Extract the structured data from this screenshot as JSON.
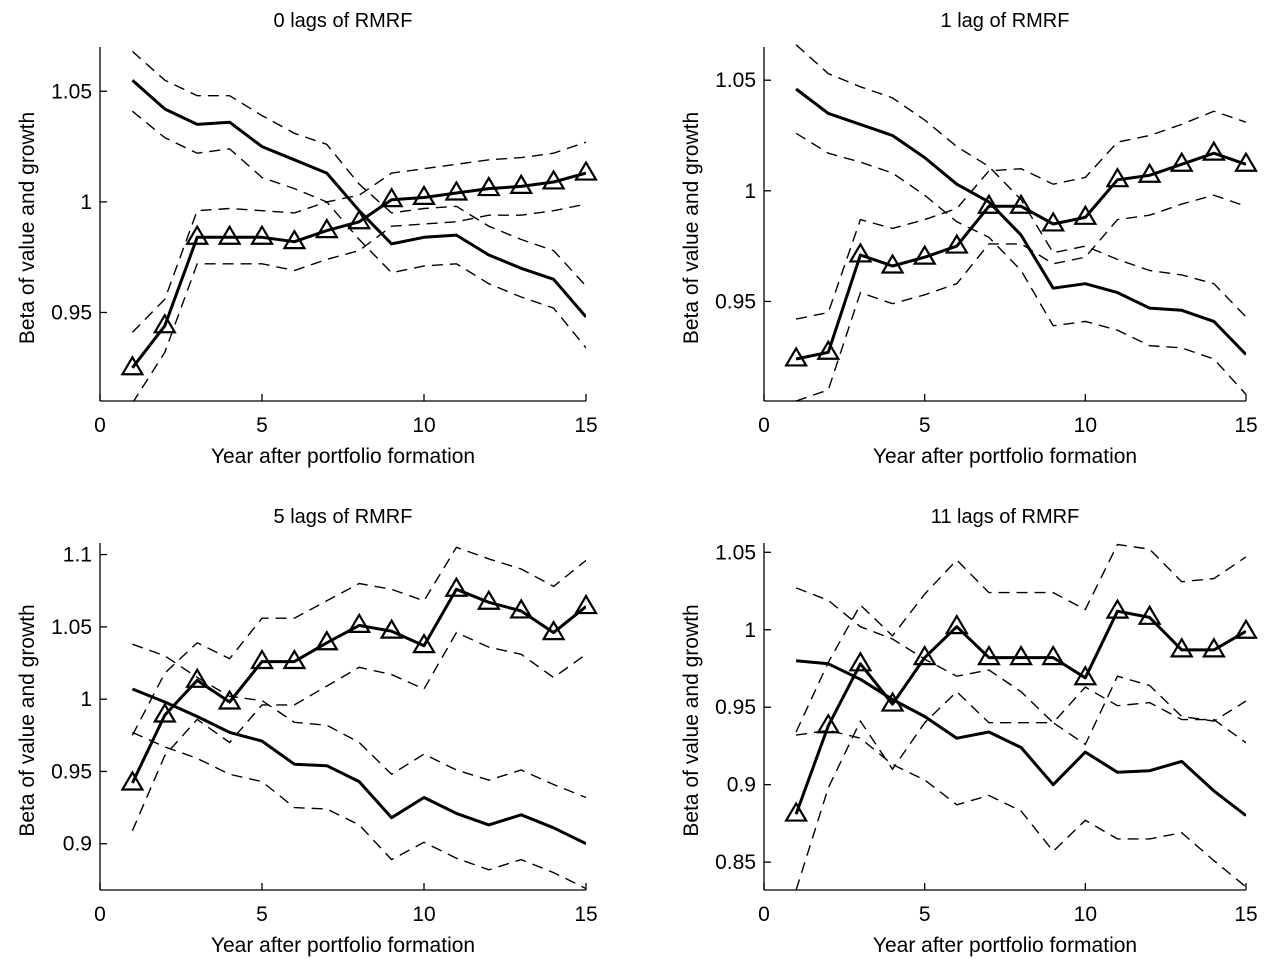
{
  "chart_data": [
    {
      "type": "line",
      "title": "0 lags of RMRF",
      "xlabel": "Year after portfolio formation",
      "ylabel": "Beta of value and growth",
      "xlim": [
        0,
        15
      ],
      "ylim": [
        0.91,
        1.07
      ],
      "xticks": [
        0,
        5,
        10,
        15
      ],
      "yticks": [
        0.95,
        1,
        1.05
      ],
      "yticklabels": [
        "0.95",
        "1",
        "1.05"
      ],
      "x": [
        1,
        2,
        3,
        4,
        5,
        6,
        7,
        8,
        9,
        10,
        11,
        12,
        13,
        14,
        15
      ],
      "series": [
        {
          "style": "solid",
          "values": [
            1.055,
            1.042,
            1.035,
            1.036,
            1.025,
            1.019,
            1.013,
            0.996,
            0.981,
            0.984,
            0.985,
            0.976,
            0.97,
            0.965,
            0.948
          ]
        },
        {
          "style": "dashed",
          "values": [
            1.068,
            1.055,
            1.048,
            1.048,
            1.039,
            1.031,
            1.026,
            1.008,
            0.995,
            0.997,
            0.998,
            0.989,
            0.983,
            0.978,
            0.962
          ]
        },
        {
          "style": "dashed",
          "values": [
            1.041,
            1.029,
            1.022,
            1.024,
            1.011,
            1.006,
            1.0,
            0.983,
            0.968,
            0.971,
            0.972,
            0.963,
            0.957,
            0.952,
            0.934
          ]
        },
        {
          "style": "solid",
          "marker": "triangle",
          "values": [
            0.925,
            0.944,
            0.984,
            0.984,
            0.984,
            0.982,
            0.987,
            0.991,
            1.001,
            1.002,
            1.004,
            1.006,
            1.007,
            1.009,
            1.013
          ]
        },
        {
          "style": "dashed",
          "values": [
            0.941,
            0.956,
            0.996,
            0.997,
            0.996,
            0.995,
            1.0,
            1.003,
            1.013,
            1.015,
            1.017,
            1.019,
            1.02,
            1.022,
            1.027
          ]
        },
        {
          "style": "dashed",
          "values": [
            0.909,
            0.932,
            0.972,
            0.972,
            0.972,
            0.969,
            0.974,
            0.978,
            0.989,
            0.99,
            0.991,
            0.994,
            0.994,
            0.996,
            0.999
          ]
        }
      ]
    },
    {
      "type": "line",
      "title": "1 lag of RMRF",
      "xlabel": "Year after portfolio formation",
      "ylabel": "Beta of value and growth",
      "xlim": [
        0,
        15
      ],
      "ylim": [
        0.905,
        1.065
      ],
      "xticks": [
        0,
        5,
        10,
        15
      ],
      "yticks": [
        0.95,
        1,
        1.05
      ],
      "yticklabels": [
        "0.95",
        "1",
        "1.05"
      ],
      "x": [
        1,
        2,
        3,
        4,
        5,
        6,
        7,
        8,
        9,
        10,
        11,
        12,
        13,
        14,
        15
      ],
      "series": [
        {
          "style": "solid",
          "values": [
            1.046,
            1.035,
            1.03,
            1.025,
            1.015,
            1.003,
            0.995,
            0.98,
            0.956,
            0.958,
            0.954,
            0.947,
            0.946,
            0.941,
            0.926
          ]
        },
        {
          "style": "dashed",
          "values": [
            1.066,
            1.053,
            1.047,
            1.042,
            1.032,
            1.02,
            1.011,
            0.996,
            0.972,
            0.975,
            0.969,
            0.964,
            0.962,
            0.958,
            0.943
          ]
        },
        {
          "style": "dashed",
          "values": [
            1.026,
            1.017,
            1.013,
            1.008,
            0.998,
            0.986,
            0.979,
            0.964,
            0.939,
            0.941,
            0.937,
            0.93,
            0.929,
            0.924,
            0.908
          ]
        },
        {
          "style": "solid",
          "marker": "triangle",
          "values": [
            0.924,
            0.927,
            0.971,
            0.966,
            0.97,
            0.975,
            0.993,
            0.993,
            0.985,
            0.988,
            1.005,
            1.007,
            1.012,
            1.017,
            1.012
          ]
        },
        {
          "style": "dashed",
          "values": [
            0.942,
            0.945,
            0.987,
            0.983,
            0.987,
            0.992,
            1.009,
            1.01,
            1.003,
            1.006,
            1.022,
            1.025,
            1.03,
            1.036,
            1.031
          ]
        },
        {
          "style": "dashed",
          "values": [
            0.905,
            0.91,
            0.954,
            0.949,
            0.953,
            0.958,
            0.976,
            0.976,
            0.967,
            0.97,
            0.987,
            0.989,
            0.994,
            0.998,
            0.993
          ]
        }
      ]
    },
    {
      "type": "line",
      "title": "5 lags of RMRF",
      "xlabel": "Year after portfolio formation",
      "ylabel": "Beta of value and growth",
      "xlim": [
        0,
        15
      ],
      "ylim": [
        0.868,
        1.108
      ],
      "xticks": [
        0,
        5,
        10,
        15
      ],
      "yticks": [
        0.9,
        0.95,
        1,
        1.05,
        1.1
      ],
      "yticklabels": [
        "0.9",
        "0.95",
        "1",
        "1.05",
        "1.1"
      ],
      "x": [
        1,
        2,
        3,
        4,
        5,
        6,
        7,
        8,
        9,
        10,
        11,
        12,
        13,
        14,
        15
      ],
      "series": [
        {
          "style": "solid",
          "values": [
            1.007,
            0.998,
            0.988,
            0.977,
            0.971,
            0.955,
            0.954,
            0.943,
            0.918,
            0.932,
            0.921,
            0.913,
            0.92,
            0.911,
            0.9
          ]
        },
        {
          "style": "dashed",
          "values": [
            1.038,
            1.03,
            1.015,
            1.002,
            0.999,
            0.984,
            0.982,
            0.97,
            0.948,
            0.962,
            0.951,
            0.944,
            0.951,
            0.941,
            0.932
          ]
        },
        {
          "style": "dashed",
          "values": [
            0.977,
            0.967,
            0.959,
            0.948,
            0.943,
            0.925,
            0.924,
            0.913,
            0.889,
            0.901,
            0.89,
            0.882,
            0.889,
            0.88,
            0.869
          ]
        },
        {
          "style": "solid",
          "marker": "triangle",
          "values": [
            0.942,
            0.989,
            1.013,
            0.998,
            1.026,
            1.026,
            1.039,
            1.051,
            1.047,
            1.037,
            1.076,
            1.067,
            1.061,
            1.046,
            1.064
          ]
        },
        {
          "style": "dashed",
          "values": [
            0.975,
            1.018,
            1.039,
            1.028,
            1.056,
            1.056,
            1.068,
            1.08,
            1.076,
            1.068,
            1.105,
            1.097,
            1.09,
            1.078,
            1.096
          ]
        },
        {
          "style": "dashed",
          "values": [
            0.909,
            0.961,
            0.986,
            0.97,
            0.996,
            0.996,
            1.009,
            1.022,
            1.017,
            1.007,
            1.046,
            1.036,
            1.031,
            1.015,
            1.031
          ]
        }
      ]
    },
    {
      "type": "line",
      "title": "11 lags of RMRF",
      "xlabel": "Year after portfolio formation",
      "ylabel": "Beta of value and growth",
      "xlim": [
        0,
        15
      ],
      "ylim": [
        0.832,
        1.056
      ],
      "xticks": [
        0,
        5,
        10,
        15
      ],
      "yticks": [
        0.85,
        0.9,
        0.95,
        1,
        1.05
      ],
      "yticklabels": [
        "0.85",
        "0.9",
        "0.95",
        "1",
        "1.05"
      ],
      "x": [
        1,
        2,
        3,
        4,
        5,
        6,
        7,
        8,
        9,
        10,
        11,
        12,
        13,
        14,
        15
      ],
      "series": [
        {
          "style": "solid",
          "values": [
            0.98,
            0.978,
            0.968,
            0.955,
            0.944,
            0.93,
            0.934,
            0.924,
            0.9,
            0.921,
            0.908,
            0.909,
            0.915,
            0.896,
            0.88
          ]
        },
        {
          "style": "dashed",
          "values": [
            1.027,
            1.019,
            1.002,
            0.994,
            0.981,
            0.97,
            0.974,
            0.96,
            0.94,
            0.963,
            0.951,
            0.953,
            0.942,
            0.942,
            0.927
          ]
        },
        {
          "style": "dashed",
          "values": [
            0.932,
            0.935,
            0.93,
            0.913,
            0.903,
            0.887,
            0.893,
            0.883,
            0.857,
            0.877,
            0.865,
            0.865,
            0.869,
            0.851,
            0.834
          ]
        },
        {
          "style": "solid",
          "marker": "triangle",
          "values": [
            0.881,
            0.938,
            0.978,
            0.952,
            0.982,
            1.002,
            0.982,
            0.982,
            0.982,
            0.969,
            1.012,
            1.008,
            0.987,
            0.987,
            0.999
          ]
        },
        {
          "style": "dashed",
          "values": [
            0.934,
            0.979,
            1.016,
            0.996,
            1.023,
            1.045,
            1.024,
            1.024,
            1.024,
            1.013,
            1.055,
            1.052,
            1.031,
            1.033,
            1.047
          ]
        },
        {
          "style": "dashed",
          "values": [
            0.832,
            0.898,
            0.941,
            0.91,
            0.94,
            0.96,
            0.94,
            0.94,
            0.94,
            0.926,
            0.97,
            0.964,
            0.944,
            0.941,
            0.954
          ]
        }
      ]
    }
  ]
}
